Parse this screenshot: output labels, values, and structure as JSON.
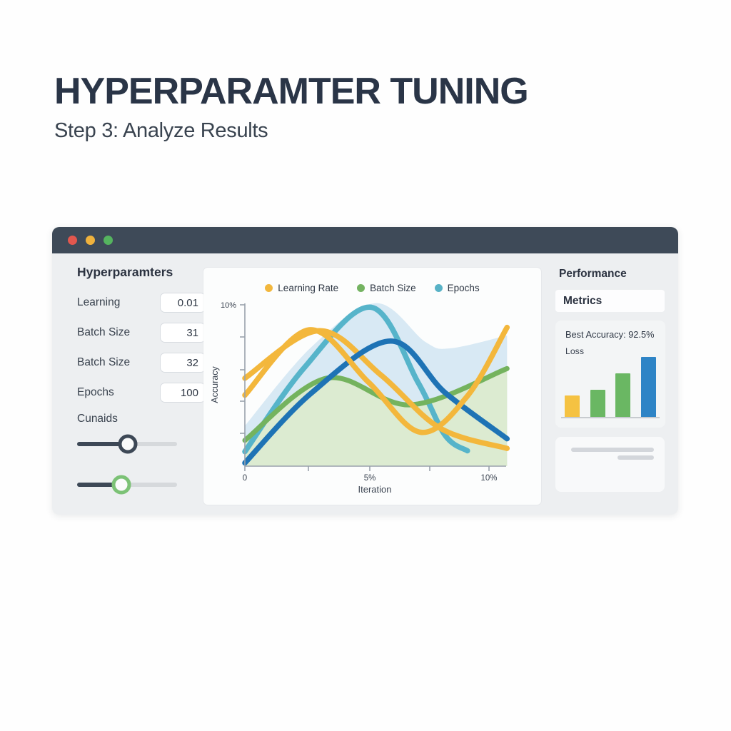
{
  "page": {
    "title": "HYPERPARAMTER TUNING",
    "subtitle": "Step 3: Analyze Results"
  },
  "window": {
    "sidebar": {
      "heading": "Hyperparamters",
      "fields": [
        {
          "label": "Learning",
          "value": "0.01"
        },
        {
          "label": "Batch Size",
          "value": "31"
        },
        {
          "label": "Batch Size",
          "value": "32"
        },
        {
          "label": "Epochs",
          "value": "100"
        }
      ],
      "slider_section_label": "Cunaids",
      "sliders": [
        {
          "position_pct": 51,
          "thumb_color": "#3d4856"
        },
        {
          "position_pct": 44,
          "thumb_color": "#7cc276"
        }
      ]
    },
    "metrics": {
      "heading": "Performance",
      "tab": "Metrics",
      "best_accuracy": "Best Accuracy: 92.5%",
      "loss_label": "Loss"
    }
  },
  "chart_data": [
    {
      "type": "line",
      "title": "",
      "xlabel": "Iteration",
      "ylabel": "Accuracy",
      "xlim": [
        0,
        10.6
      ],
      "ylim": [
        0,
        10
      ],
      "grid": false,
      "legend_position": "top-center",
      "x_tick_labels": [
        "0",
        "",
        "5%",
        "",
        "10%"
      ],
      "y_tick_labels": [
        "10%",
        "",
        "",
        "",
        ""
      ],
      "legend": [
        {
          "label": "Learning Rate",
          "color": "#f2b73d"
        },
        {
          "label": "Batch Size",
          "color": "#74b361"
        },
        {
          "label": "Epochs",
          "color": "#58b2c6"
        }
      ],
      "series": [
        {
          "name": "epochs-area-band",
          "kind": "area",
          "color": "#d8e9f4",
          "x": [
            0,
            2.7,
            5.3,
            7.3,
            8.3,
            10.6
          ],
          "y": [
            2.5,
            7.4,
            10.1,
            7.7,
            7.3,
            8.1
          ]
        },
        {
          "name": "batch-size-area-band",
          "kind": "area",
          "color": "#dcebd1",
          "x": [
            0,
            3.3,
            6.7,
            10.6
          ],
          "y": [
            1.4,
            5.3,
            3.7,
            6.0
          ]
        },
        {
          "name": "epochs-curve",
          "kind": "line",
          "color": "#56b4ca",
          "width": 7.5,
          "x": [
            0,
            2.4,
            5.1,
            7.0,
            8.1,
            9.0
          ],
          "y": [
            0.9,
            6.1,
            9.85,
            5.2,
            1.9,
            0.95
          ]
        },
        {
          "name": "batch-size-curve",
          "kind": "line",
          "color": "#74b35e",
          "width": 7,
          "x": [
            0,
            3.3,
            6.7,
            10.6
          ],
          "y": [
            1.6,
            5.45,
            3.8,
            6.05
          ]
        },
        {
          "name": "learning-rate-curve-descending",
          "kind": "line",
          "color": "#f3b73c",
          "width": 7.5,
          "x": [
            0,
            3.0,
            5.5,
            7.9,
            10.6
          ],
          "y": [
            5.45,
            8.4,
            5.65,
            2.35,
            1.1
          ]
        },
        {
          "name": "trend-curve-blue",
          "kind": "line",
          "color": "#1e73b5",
          "width": 7.5,
          "x": [
            0,
            2.7,
            5.9,
            8.1,
            10.6
          ],
          "y": [
            0.2,
            4.55,
            7.75,
            4.55,
            1.7
          ]
        },
        {
          "name": "learning-rate-curve-rising",
          "kind": "line",
          "color": "#f3b73c",
          "width": 7.5,
          "x": [
            0,
            2.6,
            5.0,
            7.1,
            9.0,
            10.6
          ],
          "y": [
            4.4,
            8.45,
            5.2,
            2.1,
            4.35,
            8.6
          ]
        }
      ]
    },
    {
      "type": "bar",
      "title": "Loss",
      "values": [
        36,
        46,
        73,
        100
      ],
      "colors": [
        "#f5c242",
        "#6ab763",
        "#6ab763",
        "#2e84c6"
      ],
      "ylim": [
        0,
        100
      ]
    }
  ],
  "colors": {
    "titlebar": "#3e4a58",
    "traffic_lights": [
      "#e2574e",
      "#efb23d",
      "#55b45f"
    ],
    "window_body": "#edeff1",
    "accent_blue": "#1e73b5"
  }
}
